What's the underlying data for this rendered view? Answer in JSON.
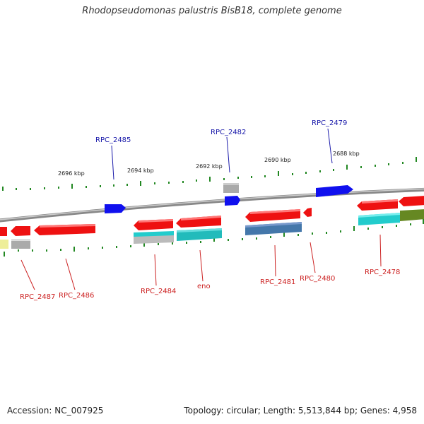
{
  "title": "Rhodopseudomonas palustris BisB18, complete genome",
  "accession": "Accession: NC_007925",
  "summary": "Topology: circular; Length: 5,513,844 bp; Genes: 4,958",
  "scale_labels": [
    "2696 kbp",
    "2694 kbp",
    "2692 kbp",
    "2690 kbp",
    "2688 kbp"
  ],
  "gene_labels_top": [
    "RPC_2485",
    "RPC_2482",
    "RPC_2479"
  ],
  "gene_labels_bottom": [
    "RPC_2487",
    "RPC_2486",
    "RPC_2484",
    "eno",
    "RPC_2481",
    "RPC_2480",
    "RPC_2478"
  ],
  "colors": {
    "forward_gene": "#1010ee",
    "reverse_gene": "#ee1111",
    "cyan_track": "#22cccc",
    "gray_track": "#aaaaaa",
    "steelblue_track": "#4477aa",
    "olive_track": "#668822",
    "yellow_track": "#eeee99",
    "tick": "#228822",
    "backbone": "#888888"
  }
}
